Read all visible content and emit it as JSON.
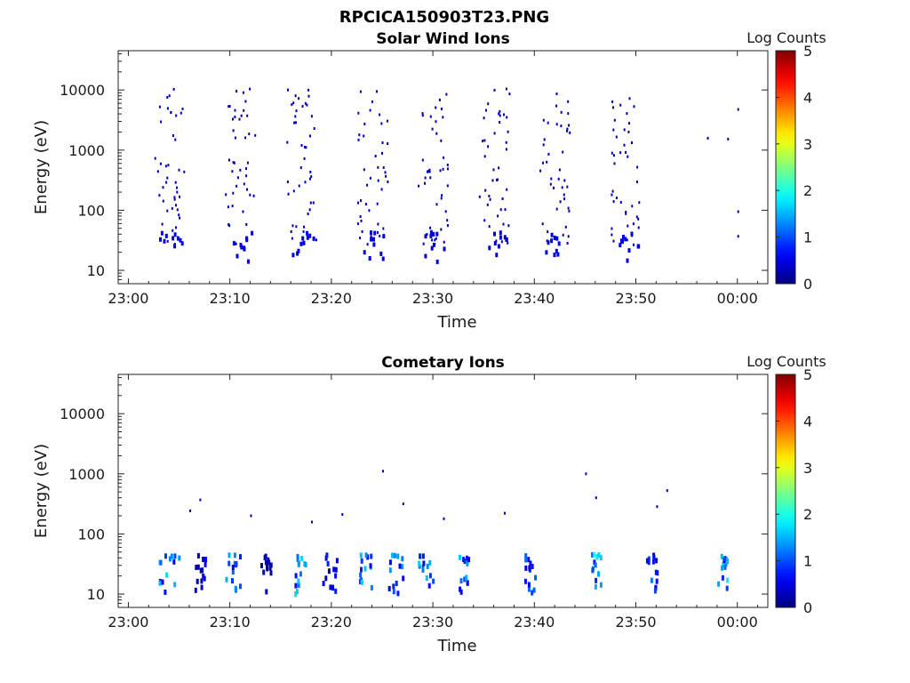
{
  "figure_title": "RPCICA150903T23.PNG",
  "chart_data": [
    {
      "type": "heatmap",
      "title": "Solar Wind Ions",
      "xlabel": "Time",
      "ylabel": "Energy (eV)",
      "yscale": "log",
      "ylim": [
        6,
        45000
      ],
      "xlim_minutes": [
        -1,
        63
      ],
      "x_ticks": [
        "23:00",
        "23:10",
        "23:20",
        "23:30",
        "23:40",
        "23:50",
        "00:00"
      ],
      "y_ticks": [
        "10",
        "100",
        "1000",
        "10000"
      ],
      "colorbar": {
        "label": "Log Counts",
        "range": [
          0,
          5
        ],
        "ticks": [
          "0",
          "1",
          "2",
          "3",
          "4",
          "5"
        ],
        "colormap": "jet"
      },
      "bursts": [
        {
          "t": 23.03,
          "low_level": 0.3,
          "max_level": 0.6,
          "hf": 12
        },
        {
          "t": 23.1,
          "low_level": 0.2,
          "max_level": 0.4,
          "hf": 12
        },
        {
          "t": 23.16,
          "low_level": 0.25,
          "max_level": 0.5,
          "hf": 13
        },
        {
          "t": 23.23,
          "low_level": 0.3,
          "max_level": 0.5,
          "hf": 12
        },
        {
          "t": 23.29,
          "low_level": 0.25,
          "max_level": 0.4,
          "hf": 13
        },
        {
          "t": 23.35,
          "low_level": 0.2,
          "max_level": 0.4,
          "hf": 12
        },
        {
          "t": 23.41,
          "low_level": 0.25,
          "max_level": 0.5,
          "hf": 14
        },
        {
          "t": 23.48,
          "low_level": 0.25,
          "max_level": 0.5,
          "hf": 12
        }
      ],
      "sparse_points": [
        {
          "time": "23:57",
          "energy": 1500,
          "level": 0.2
        },
        {
          "time": "23:59",
          "energy": 1450,
          "level": 0.2
        },
        {
          "time": "00:00",
          "energy": 4500,
          "level": 0.2
        },
        {
          "time": "00:00",
          "energy": 90,
          "level": 0.2
        },
        {
          "time": "00:00",
          "energy": 35,
          "level": 0.2
        }
      ]
    },
    {
      "type": "heatmap",
      "title": "Cometary Ions",
      "xlabel": "Time",
      "ylabel": "Energy (eV)",
      "yscale": "log",
      "ylim": [
        6,
        45000
      ],
      "xlim_minutes": [
        -1,
        63
      ],
      "x_ticks": [
        "23:00",
        "23:10",
        "23:20",
        "23:30",
        "23:40",
        "23:50",
        "00:00"
      ],
      "y_ticks": [
        "10",
        "100",
        "1000",
        "10000"
      ],
      "colorbar": {
        "label": "Log Counts",
        "range": [
          0,
          5
        ],
        "ticks": [
          "0",
          "1",
          "2",
          "3",
          "4",
          "5"
        ],
        "colormap": "jet"
      },
      "bursts": [
        {
          "start_min": 2.5,
          "end_min": 5,
          "peak_level": 1.8
        },
        {
          "start_min": 6.5,
          "end_min": 7.5,
          "peak_level": 0.6
        },
        {
          "start_min": 9.5,
          "end_min": 11,
          "peak_level": 1.5
        },
        {
          "start_min": 13,
          "end_min": 14,
          "peak_level": 0.4
        },
        {
          "start_min": 16,
          "end_min": 17.5,
          "peak_level": 1.8
        },
        {
          "start_min": 19,
          "end_min": 20.5,
          "peak_level": 0.8
        },
        {
          "start_min": 22,
          "end_min": 24,
          "peak_level": 1.8
        },
        {
          "start_min": 25.5,
          "end_min": 27,
          "peak_level": 1.6
        },
        {
          "start_min": 28.5,
          "end_min": 30,
          "peak_level": 1.7
        },
        {
          "start_min": 32.5,
          "end_min": 33.5,
          "peak_level": 1.7
        },
        {
          "start_min": 39,
          "end_min": 40,
          "peak_level": 1.2
        },
        {
          "start_min": 45.5,
          "end_min": 46.5,
          "peak_level": 2.0
        },
        {
          "start_min": 51,
          "end_min": 52,
          "peak_level": 1.2
        },
        {
          "start_min": 58,
          "end_min": 59,
          "peak_level": 1.8
        }
      ],
      "sparse_points": [
        {
          "time": "23:06",
          "energy": 230,
          "level": 0.3
        },
        {
          "time": "23:07",
          "energy": 350,
          "level": 0.3
        },
        {
          "time": "23:12",
          "energy": 190,
          "level": 0.3
        },
        {
          "time": "23:18",
          "energy": 150,
          "level": 0.3
        },
        {
          "time": "23:21",
          "energy": 200,
          "level": 0.3
        },
        {
          "time": "23:25",
          "energy": 1050,
          "level": 0.3
        },
        {
          "time": "23:27",
          "energy": 300,
          "level": 0.3
        },
        {
          "time": "23:31",
          "energy": 170,
          "level": 0.3
        },
        {
          "time": "23:37",
          "energy": 210,
          "level": 0.3
        },
        {
          "time": "23:45",
          "energy": 950,
          "level": 0.3
        },
        {
          "time": "23:46",
          "energy": 380,
          "level": 0.3
        },
        {
          "time": "23:52",
          "energy": 270,
          "level": 0.3
        },
        {
          "time": "23:53",
          "energy": 500,
          "level": 0.3
        }
      ]
    }
  ]
}
